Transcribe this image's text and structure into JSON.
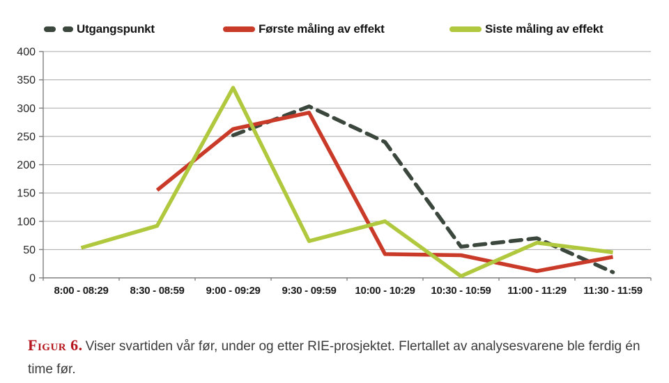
{
  "legend": {
    "items": [
      {
        "label": "Utgangspunkt",
        "color": "#3b463c",
        "style": "dashed"
      },
      {
        "label": "Første måling av effekt",
        "color": "#c93a29",
        "style": "solid"
      },
      {
        "label": "Siste måling av effekt",
        "color": "#b0c83d",
        "style": "solid"
      }
    ]
  },
  "chart_data": {
    "type": "line",
    "title": "",
    "xlabel": "",
    "ylabel": "",
    "categories": [
      "8:00 - 08:29",
      "8:30 - 08:59",
      "9:00 - 09:29",
      "9:30 - 09:59",
      "10:00 - 10:29",
      "10:30 - 10:59",
      "11:00 - 11:29",
      "11:30 - 11:59"
    ],
    "series": [
      {
        "name": "Utgangspunkt",
        "color": "#3b463c",
        "dashed": true,
        "values": [
          null,
          null,
          252,
          303,
          240,
          55,
          70,
          10
        ]
      },
      {
        "name": "Første måling av effekt",
        "color": "#c93a29",
        "dashed": false,
        "values": [
          null,
          155,
          263,
          292,
          42,
          40,
          12,
          37
        ]
      },
      {
        "name": "Siste måling av effekt",
        "color": "#b0c83d",
        "dashed": false,
        "values": [
          53,
          92,
          336,
          65,
          100,
          3,
          62,
          45
        ]
      }
    ],
    "ylim": [
      0,
      400
    ],
    "yticks": [
      0,
      50,
      100,
      150,
      200,
      250,
      300,
      350,
      400
    ],
    "grid": true,
    "legend_position": "top",
    "gridline_color": "#a8a8a8",
    "axis_color": "#7f7f7f"
  },
  "caption": {
    "figure_label": "Figur 6.",
    "text": "Viser svartiden vår før, under og etter RIE-prosjektet. Flertallet av analysesvarene ble ferdig én time før."
  }
}
